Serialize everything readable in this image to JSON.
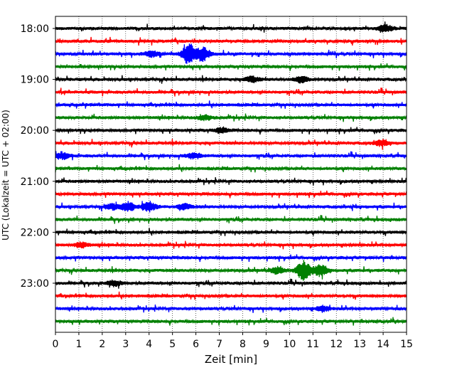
{
  "chart_data": {
    "type": "line",
    "title": "",
    "xlabel": "Zeit  [min]",
    "ylabel": "UTC (Lokalzeit = UTC + 02:00)",
    "xlim": [
      0,
      15
    ],
    "x_ticks": [
      "0",
      "1",
      "2",
      "3",
      "4",
      "5",
      "6",
      "7",
      "8",
      "9",
      "10",
      "11",
      "12",
      "13",
      "14",
      "15"
    ],
    "y_ticks": [
      {
        "label": "18:00",
        "trace": 0
      },
      {
        "label": "19:00",
        "trace": 4
      },
      {
        "label": "20:00",
        "trace": 8
      },
      {
        "label": "21:00",
        "trace": 12
      },
      {
        "label": "22:00",
        "trace": 16
      },
      {
        "label": "23:00",
        "trace": 20
      }
    ],
    "grid": "vertical-dotted",
    "trace_colors": [
      "#000000",
      "#ff0000",
      "#0000ff",
      "#008000"
    ],
    "traces": [
      {
        "start": "18:00",
        "events": [
          {
            "x": 14.1,
            "amp": 0.9
          }
        ]
      },
      {
        "start": "18:15",
        "events": []
      },
      {
        "start": "18:30",
        "events": [
          {
            "x": 4.1,
            "amp": 0.7
          },
          {
            "x": 5.7,
            "amp": 2.5
          },
          {
            "x": 6.3,
            "amp": 1.7
          }
        ]
      },
      {
        "start": "18:45",
        "events": []
      },
      {
        "start": "19:00",
        "events": [
          {
            "x": 8.4,
            "amp": 0.7
          },
          {
            "x": 10.5,
            "amp": 0.8
          }
        ]
      },
      {
        "start": "19:15",
        "events": []
      },
      {
        "start": "19:30",
        "events": []
      },
      {
        "start": "19:45",
        "events": [
          {
            "x": 6.4,
            "amp": 0.6
          }
        ]
      },
      {
        "start": "20:00",
        "events": [
          {
            "x": 7.1,
            "amp": 0.6
          }
        ]
      },
      {
        "start": "20:15",
        "events": [
          {
            "x": 13.9,
            "amp": 0.7
          }
        ]
      },
      {
        "start": "20:30",
        "events": [
          {
            "x": 0.3,
            "amp": 0.8
          },
          {
            "x": 5.9,
            "amp": 0.7
          }
        ]
      },
      {
        "start": "20:45",
        "events": []
      },
      {
        "start": "21:00",
        "events": []
      },
      {
        "start": "21:15",
        "events": []
      },
      {
        "start": "21:30",
        "events": [
          {
            "x": 2.4,
            "amp": 0.7
          },
          {
            "x": 3.1,
            "amp": 1.1
          },
          {
            "x": 4.0,
            "amp": 1.2
          },
          {
            "x": 5.5,
            "amp": 0.7
          }
        ]
      },
      {
        "start": "21:45",
        "events": []
      },
      {
        "start": "22:00",
        "events": []
      },
      {
        "start": "22:15",
        "events": [
          {
            "x": 1.1,
            "amp": 0.6
          }
        ]
      },
      {
        "start": "22:30",
        "events": []
      },
      {
        "start": "22:45",
        "events": [
          {
            "x": 9.5,
            "amp": 0.8
          },
          {
            "x": 10.6,
            "amp": 2.4
          },
          {
            "x": 11.3,
            "amp": 1.4
          }
        ]
      },
      {
        "start": "23:00",
        "events": [
          {
            "x": 2.5,
            "amp": 0.7
          }
        ]
      },
      {
        "start": "23:15",
        "events": []
      },
      {
        "start": "23:30",
        "events": [
          {
            "x": 11.4,
            "amp": 0.7
          }
        ]
      },
      {
        "start": "23:45",
        "events": []
      }
    ]
  }
}
